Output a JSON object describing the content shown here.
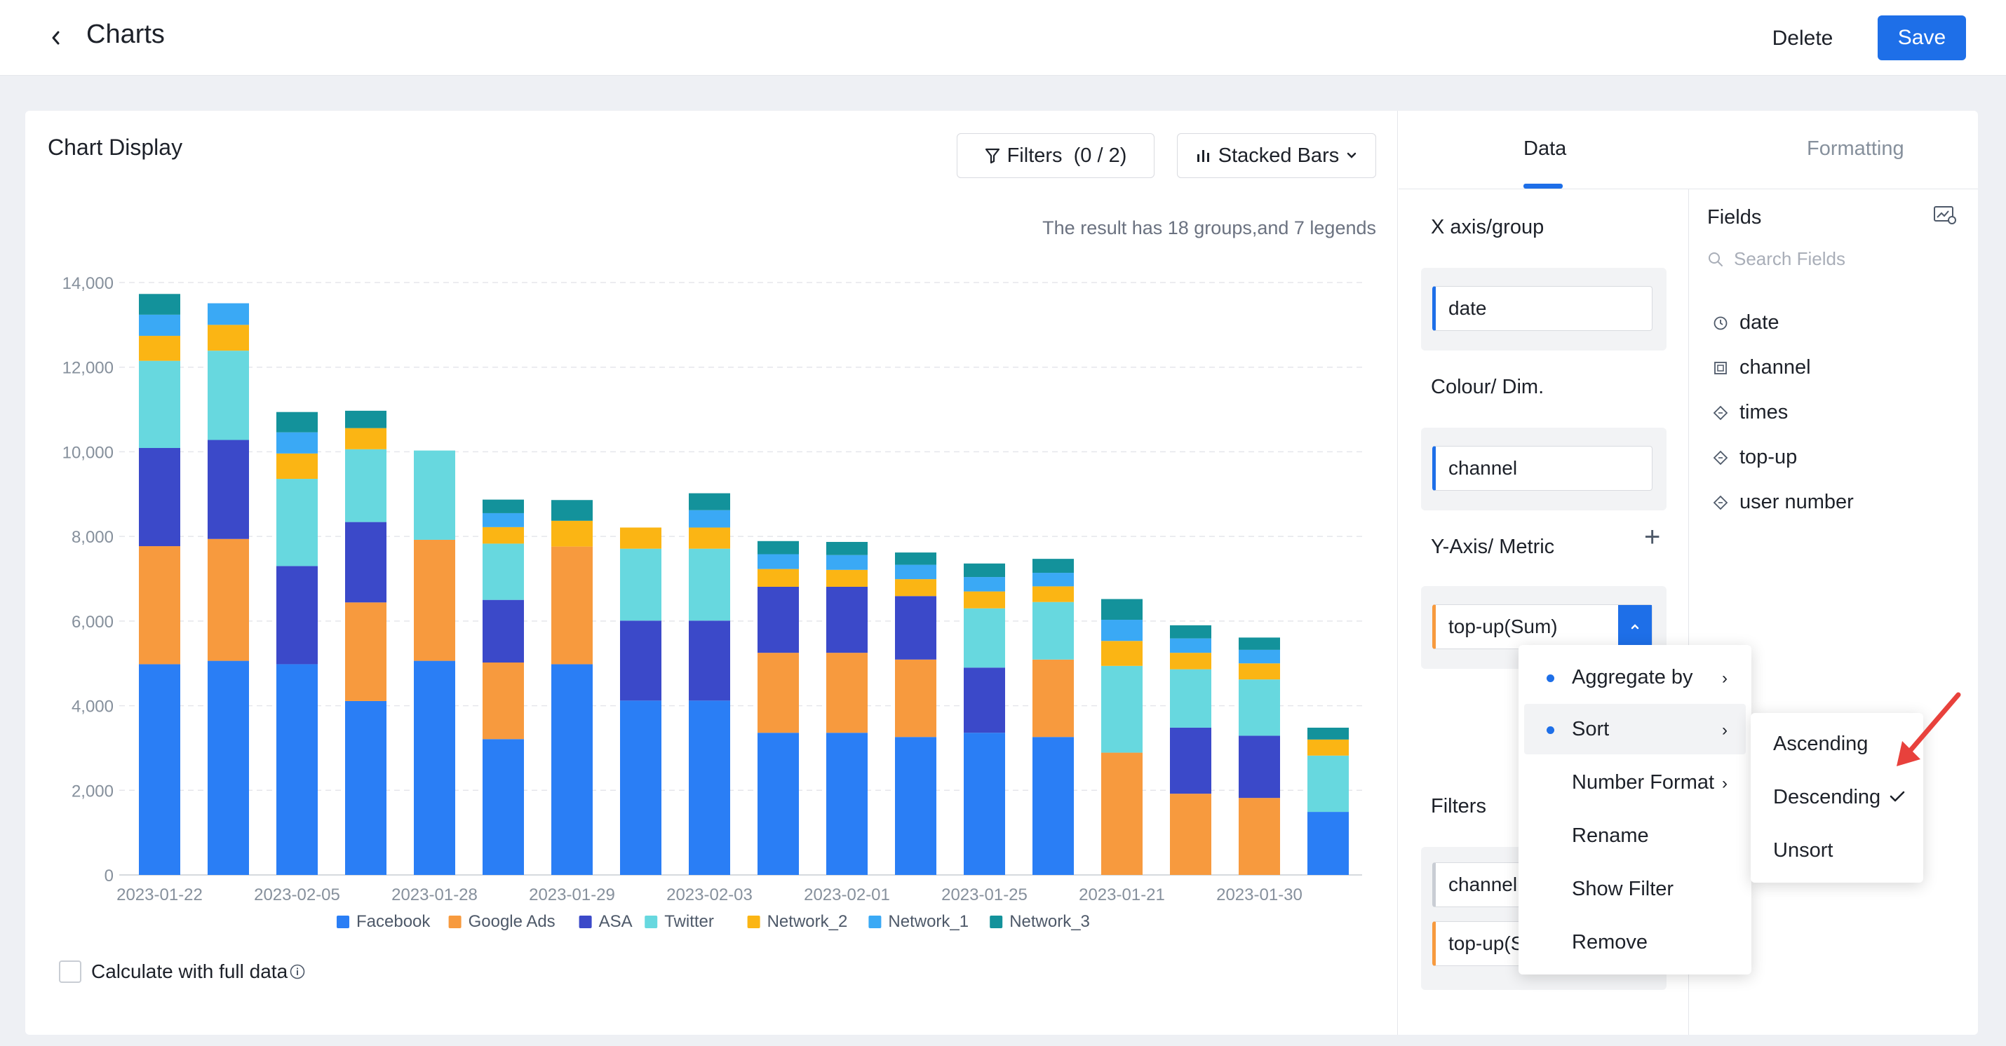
{
  "header": {
    "title": "Charts",
    "delete_label": "Delete",
    "save_label": "Save"
  },
  "chart_panel": {
    "title": "Chart Display",
    "filters_label": "Filters  (0 / 2)",
    "chart_type_label": "Stacked Bars",
    "result_text": "The result has 18 groups,and 7 legends",
    "full_data_label": "Calculate with full data"
  },
  "tabs": {
    "data": "Data",
    "formatting": "Formatting"
  },
  "config": {
    "x_axis_label": "X axis/group",
    "x_axis_value": "date",
    "colour_label": "Colour/ Dim.",
    "colour_value": "channel",
    "y_axis_label": "Y-Axis/ Metric",
    "y_axis_value": "top-up(Sum)",
    "filters_label": "Filters",
    "filter_1": "channel",
    "filter_2": "top-up(S"
  },
  "fields": {
    "title": "Fields",
    "search_placeholder": "Search Fields",
    "items": [
      {
        "label": "date",
        "icon": "clock-icon"
      },
      {
        "label": "channel",
        "icon": "dimension-icon"
      },
      {
        "label": "times",
        "icon": "measure-icon"
      },
      {
        "label": "top-up",
        "icon": "measure-icon"
      },
      {
        "label": "user number",
        "icon": "measure-icon"
      }
    ]
  },
  "context_menu": {
    "items": [
      "Aggregate by",
      "Sort",
      "Number Format",
      "Rename",
      "Show Filter",
      "Remove"
    ],
    "active": "Sort"
  },
  "sort_submenu": {
    "items": [
      "Ascending",
      "Descending",
      "Unsort"
    ],
    "checked": "Descending"
  },
  "colors": {
    "accent": "#1e6fe8",
    "annotation_arrow": "#e8413c"
  },
  "chart_data": {
    "type": "bar",
    "stacked": true,
    "ylim": [
      0,
      14000
    ],
    "yticks": [
      0,
      2000,
      4000,
      6000,
      8000,
      10000,
      12000,
      14000
    ],
    "ytick_labels": [
      "0",
      "2,000",
      "4,000",
      "6,000",
      "8,000",
      "10,000",
      "12,000",
      "14,000"
    ],
    "xtick_labels": [
      "2023-01-22",
      "2023-02-05",
      "2023-01-28",
      "2023-01-29",
      "2023-02-03",
      "2023-02-01",
      "2023-01-25",
      "2023-01-21",
      "2023-01-30"
    ],
    "grid": true,
    "legend_position": "bottom",
    "series": [
      {
        "name": "Facebook",
        "color": "#2a7ef5",
        "values": [
          4980,
          5060,
          4980,
          4110,
          5060,
          3210,
          4980,
          4120,
          4120,
          3360,
          3360,
          3260,
          3360,
          3260,
          0,
          0,
          0,
          1490
        ]
      },
      {
        "name": "Google Ads",
        "color": "#f79a3e",
        "values": [
          2790,
          2880,
          0,
          2330,
          2860,
          1810,
          2780,
          0,
          0,
          1890,
          1890,
          1830,
          0,
          1830,
          2890,
          1920,
          1820,
          0
        ]
      },
      {
        "name": "ASA",
        "color": "#3b49c9",
        "values": [
          2320,
          2340,
          2320,
          1900,
          0,
          1480,
          0,
          1890,
          1890,
          1560,
          1560,
          1500,
          1540,
          0,
          0,
          1560,
          1470,
          0
        ]
      },
      {
        "name": "Twitter",
        "color": "#67d8df",
        "values": [
          2060,
          2110,
          2060,
          1720,
          2110,
          1330,
          0,
          1700,
          1700,
          0,
          0,
          0,
          1400,
          1360,
          2050,
          1380,
          1330,
          1330
        ]
      },
      {
        "name": "Network_2",
        "color": "#fbb514",
        "values": [
          590,
          610,
          600,
          500,
          0,
          390,
          610,
          500,
          500,
          420,
          400,
          400,
          400,
          370,
          590,
          390,
          380,
          380
        ]
      },
      {
        "name": "Network_1",
        "color": "#3aa9f5",
        "values": [
          500,
          510,
          500,
          0,
          0,
          330,
          0,
          0,
          410,
          350,
          350,
          340,
          340,
          320,
          500,
          340,
          320,
          0
        ]
      },
      {
        "name": "Network_3",
        "color": "#13929b",
        "values": [
          490,
          0,
          480,
          410,
          0,
          320,
          490,
          0,
          400,
          310,
          310,
          290,
          320,
          330,
          490,
          310,
          290,
          280
        ]
      }
    ]
  }
}
